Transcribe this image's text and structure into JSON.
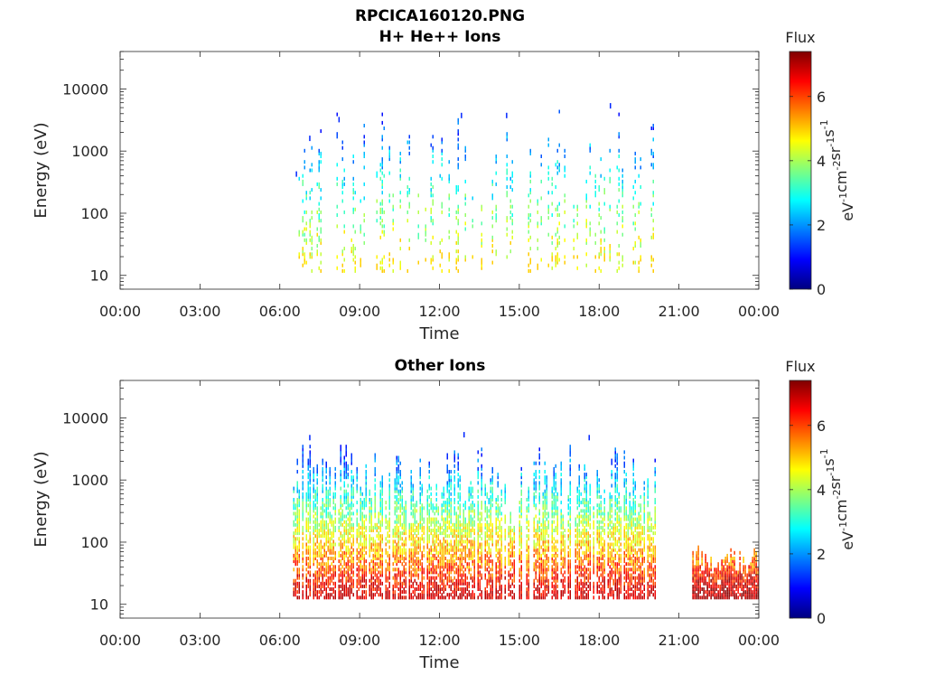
{
  "figure": {
    "title": "RPCICA160120.PNG",
    "x_tick_labels": [
      "00:00",
      "03:00",
      "06:00",
      "09:00",
      "12:00",
      "15:00",
      "18:00",
      "21:00",
      "00:00"
    ],
    "y_tick_labels": [
      "10",
      "100",
      "1000",
      "10000"
    ]
  },
  "colors": {
    "colormap": [
      "#00007f",
      "#0000ff",
      "#007fff",
      "#00ffff",
      "#7fff7f",
      "#ffff00",
      "#ff7f00",
      "#ff0000",
      "#7f0000"
    ],
    "axes": "#262626",
    "background": "#ffffff"
  },
  "chart_data": [
    {
      "type": "heatmap",
      "title": "H+ He++ Ions",
      "xlabel": "Time",
      "ylabel": "Energy (eV)",
      "x_ticks_hours": [
        0,
        3,
        6,
        9,
        12,
        15,
        18,
        21,
        24
      ],
      "xlim_hours": [
        0,
        24
      ],
      "y_scale": "log",
      "ylim": [
        6,
        40000
      ],
      "y_ticks": [
        10,
        100,
        1000,
        10000
      ],
      "colorbar": {
        "label": "Flux",
        "units": "eV-1cm-2sr-1s-1",
        "range": [
          0,
          7.4
        ],
        "ticks": [
          0,
          2,
          4,
          6
        ]
      },
      "grid": false,
      "segments": [
        {
          "start_h": 6.5,
          "end_h": 20.2,
          "energy_range": [
            11,
            5000
          ],
          "flux_range": [
            1,
            5
          ],
          "density": 0.25
        }
      ],
      "cluster_points": [
        {
          "time_h": 6.6,
          "energy": 400
        },
        {
          "time_h": 7.1,
          "energy": 1500
        },
        {
          "time_h": 8.2,
          "energy": 3000
        },
        {
          "time_h": 12.8,
          "energy": 3500
        },
        {
          "time_h": 14.5,
          "energy": 3500
        },
        {
          "time_h": 18.4,
          "energy": 5000
        }
      ]
    },
    {
      "type": "heatmap",
      "title": "Other Ions",
      "xlabel": "Time",
      "ylabel": "Energy (eV)",
      "x_ticks_hours": [
        0,
        3,
        6,
        9,
        12,
        15,
        18,
        21,
        24
      ],
      "xlim_hours": [
        0,
        24
      ],
      "y_scale": "log",
      "ylim": [
        6,
        40000
      ],
      "y_ticks": [
        10,
        100,
        1000,
        10000
      ],
      "colorbar": {
        "label": "Flux",
        "units": "eV-1cm-2sr-1s-1",
        "range": [
          0,
          7.4
        ],
        "ticks": [
          0,
          2,
          4,
          6
        ]
      },
      "grid": false,
      "segments": [
        {
          "start_h": 6.5,
          "end_h": 20.2,
          "energy_range": [
            12,
            3500
          ],
          "flux_range": [
            1,
            7
          ],
          "density": 0.7
        },
        {
          "start_h": 21.5,
          "end_h": 24.0,
          "energy_range": [
            12,
            80
          ],
          "flux_range": [
            5,
            7.3
          ],
          "density": 0.85
        }
      ],
      "cluster_points": [
        {
          "time_h": 7.1,
          "energy": 4500
        },
        {
          "time_h": 12.9,
          "energy": 5000
        },
        {
          "time_h": 17.6,
          "energy": 4500
        }
      ]
    }
  ]
}
